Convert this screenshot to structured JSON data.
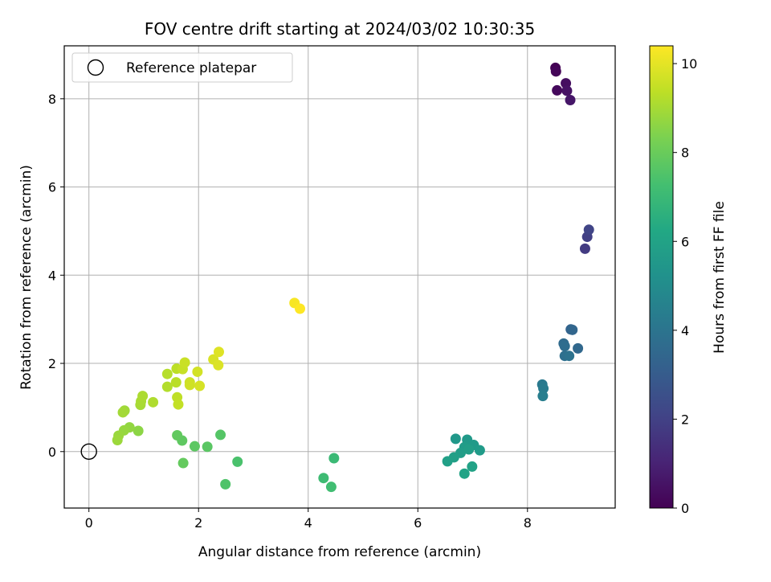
{
  "chart_data": {
    "type": "scatter",
    "title": "FOV centre drift starting at 2024/03/02 10:30:35",
    "xlabel": "Angular distance from reference (arcmin)",
    "ylabel": "Rotation from reference (arcmin)",
    "xlim": [
      -0.45,
      9.6
    ],
    "ylim": [
      -1.28,
      9.2
    ],
    "xticks": [
      0,
      2,
      4,
      6,
      8
    ],
    "yticks": [
      0,
      2,
      4,
      6,
      8
    ],
    "grid": true,
    "legend": {
      "placement": "upper-left",
      "entries": [
        "Reference platepar"
      ]
    },
    "reference_point": {
      "x": 0,
      "y": 0
    },
    "colorbar": {
      "label": "Hours from first FF file",
      "range": [
        0,
        10.4
      ],
      "ticks": [
        0,
        2,
        4,
        6,
        8,
        10
      ],
      "colormap": "viridis"
    },
    "point_color_field": "h",
    "points": [
      {
        "x": 8.51,
        "y": 8.7,
        "h": 0.0
      },
      {
        "x": 8.52,
        "y": 8.62,
        "h": 0.12
      },
      {
        "x": 8.54,
        "y": 8.19,
        "h": 0.25
      },
      {
        "x": 8.7,
        "y": 8.35,
        "h": 0.38
      },
      {
        "x": 8.72,
        "y": 8.18,
        "h": 0.5
      },
      {
        "x": 8.78,
        "y": 7.97,
        "h": 0.62
      },
      {
        "x": 9.05,
        "y": 4.6,
        "h": 1.8
      },
      {
        "x": 9.09,
        "y": 4.87,
        "h": 1.95
      },
      {
        "x": 9.12,
        "y": 5.03,
        "h": 2.1
      },
      {
        "x": 8.79,
        "y": 2.77,
        "h": 3.3
      },
      {
        "x": 8.82,
        "y": 2.76,
        "h": 3.4
      },
      {
        "x": 8.92,
        "y": 2.34,
        "h": 3.5
      },
      {
        "x": 8.66,
        "y": 2.45,
        "h": 3.6
      },
      {
        "x": 8.68,
        "y": 2.39,
        "h": 3.7
      },
      {
        "x": 8.68,
        "y": 2.17,
        "h": 3.8
      },
      {
        "x": 8.76,
        "y": 2.17,
        "h": 3.9
      },
      {
        "x": 8.27,
        "y": 1.52,
        "h": 4.2
      },
      {
        "x": 8.29,
        "y": 1.43,
        "h": 4.3
      },
      {
        "x": 8.28,
        "y": 1.26,
        "h": 4.4
      },
      {
        "x": 6.69,
        "y": 0.29,
        "h": 5.5
      },
      {
        "x": 6.9,
        "y": 0.27,
        "h": 5.55
      },
      {
        "x": 7.02,
        "y": 0.15,
        "h": 5.6
      },
      {
        "x": 7.13,
        "y": 0.03,
        "h": 5.65
      },
      {
        "x": 6.85,
        "y": 0.1,
        "h": 5.7
      },
      {
        "x": 6.78,
        "y": -0.03,
        "h": 5.75
      },
      {
        "x": 6.93,
        "y": 0.05,
        "h": 5.8
      },
      {
        "x": 6.66,
        "y": -0.13,
        "h": 5.85
      },
      {
        "x": 6.54,
        "y": -0.22,
        "h": 5.9
      },
      {
        "x": 6.99,
        "y": -0.34,
        "h": 5.95
      },
      {
        "x": 6.85,
        "y": -0.5,
        "h": 6.0
      },
      {
        "x": 4.47,
        "y": -0.15,
        "h": 7.0
      },
      {
        "x": 4.28,
        "y": -0.6,
        "h": 7.1
      },
      {
        "x": 4.42,
        "y": -0.8,
        "h": 7.2
      },
      {
        "x": 2.71,
        "y": -0.23,
        "h": 7.4
      },
      {
        "x": 2.49,
        "y": -0.74,
        "h": 7.5
      },
      {
        "x": 2.4,
        "y": 0.38,
        "h": 7.6
      },
      {
        "x": 2.16,
        "y": 0.11,
        "h": 7.7
      },
      {
        "x": 1.93,
        "y": 0.12,
        "h": 7.75
      },
      {
        "x": 1.7,
        "y": 0.25,
        "h": 7.8
      },
      {
        "x": 1.61,
        "y": 0.37,
        "h": 7.85
      },
      {
        "x": 1.72,
        "y": -0.26,
        "h": 7.9
      },
      {
        "x": 0.9,
        "y": 0.47,
        "h": 8.6
      },
      {
        "x": 0.74,
        "y": 0.55,
        "h": 8.7
      },
      {
        "x": 0.64,
        "y": 0.48,
        "h": 8.75
      },
      {
        "x": 0.54,
        "y": 0.36,
        "h": 8.8
      },
      {
        "x": 0.52,
        "y": 0.26,
        "h": 8.85
      },
      {
        "x": 0.65,
        "y": 0.93,
        "h": 8.9
      },
      {
        "x": 0.62,
        "y": 0.89,
        "h": 8.95
      },
      {
        "x": 0.94,
        "y": 1.06,
        "h": 9.0
      },
      {
        "x": 0.95,
        "y": 1.14,
        "h": 9.05
      },
      {
        "x": 0.98,
        "y": 1.26,
        "h": 9.1
      },
      {
        "x": 1.17,
        "y": 1.12,
        "h": 9.15
      },
      {
        "x": 1.43,
        "y": 1.47,
        "h": 9.2
      },
      {
        "x": 1.43,
        "y": 1.76,
        "h": 9.25
      },
      {
        "x": 1.59,
        "y": 1.57,
        "h": 9.3
      },
      {
        "x": 1.6,
        "y": 1.88,
        "h": 9.35
      },
      {
        "x": 1.61,
        "y": 1.23,
        "h": 9.4
      },
      {
        "x": 1.63,
        "y": 1.07,
        "h": 9.45
      },
      {
        "x": 1.71,
        "y": 1.87,
        "h": 9.5
      },
      {
        "x": 1.75,
        "y": 2.02,
        "h": 9.55
      },
      {
        "x": 1.84,
        "y": 1.57,
        "h": 9.6
      },
      {
        "x": 1.84,
        "y": 1.51,
        "h": 9.65
      },
      {
        "x": 1.98,
        "y": 1.81,
        "h": 9.7
      },
      {
        "x": 2.02,
        "y": 1.49,
        "h": 9.75
      },
      {
        "x": 2.27,
        "y": 2.09,
        "h": 9.8
      },
      {
        "x": 2.36,
        "y": 1.96,
        "h": 9.85
      },
      {
        "x": 2.37,
        "y": 2.26,
        "h": 9.9
      },
      {
        "x": 3.75,
        "y": 3.37,
        "h": 10.3
      },
      {
        "x": 3.85,
        "y": 3.24,
        "h": 10.4
      }
    ]
  }
}
